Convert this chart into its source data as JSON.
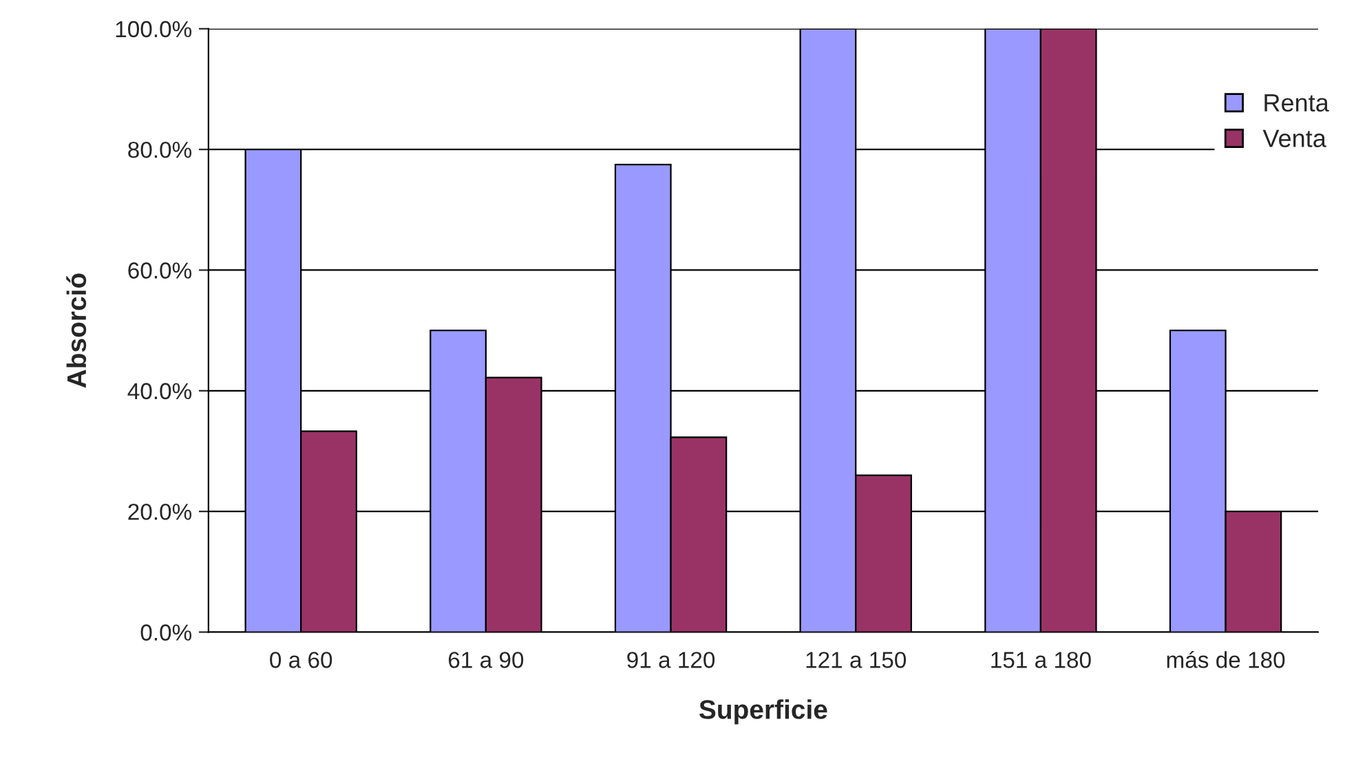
{
  "chart_data": {
    "type": "bar",
    "xlabel": "Superficie",
    "ylabel": "Absorció",
    "categories": [
      "0 a 60",
      "61 a 90",
      "91 a 120",
      "121 a 150",
      "151 a 180",
      "más de 180"
    ],
    "series": [
      {
        "name": "Renta",
        "color": "#9999ff",
        "values": [
          80,
          50,
          77.5,
          100,
          100,
          50
        ]
      },
      {
        "name": "Venta",
        "color": "#993366",
        "values": [
          33.3,
          42.2,
          32.3,
          26,
          100,
          20
        ]
      }
    ],
    "ylim": [
      0,
      100
    ],
    "yticks": [
      {
        "value": 0,
        "label": "0.0%"
      },
      {
        "value": 20,
        "label": "20.0%"
      },
      {
        "value": 40,
        "label": "40.0%"
      },
      {
        "value": 60,
        "label": "60.0%"
      },
      {
        "value": 80,
        "label": "80.0%"
      },
      {
        "value": 100,
        "label": "100.0%"
      }
    ],
    "grid": "y",
    "legend": "top right"
  }
}
